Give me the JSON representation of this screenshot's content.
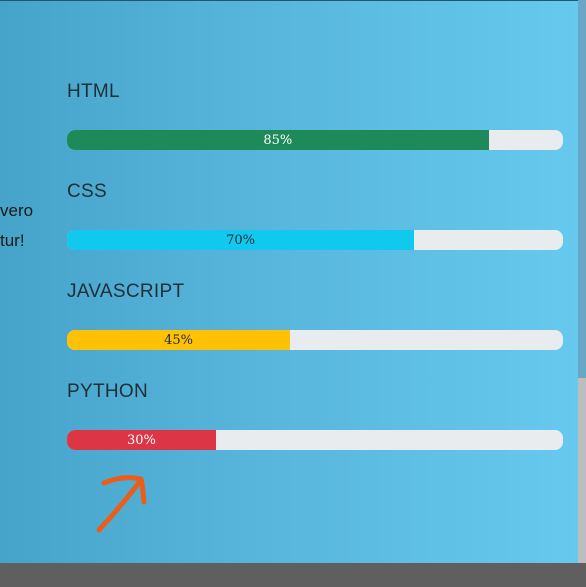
{
  "fragments": {
    "line1": "vero",
    "line2": "tur!"
  },
  "skills": [
    {
      "name": "HTML",
      "percent_label": "85%",
      "value": 0.85,
      "color": "#1e8a5a",
      "text_color": "light"
    },
    {
      "name": "CSS",
      "percent_label": "70%",
      "value": 0.7,
      "color": "#11c8ef",
      "text_color": "dark"
    },
    {
      "name": "JAVASCRIPT",
      "percent_label": "45%",
      "value": 0.45,
      "color": "#ffc105",
      "text_color": "dark"
    },
    {
      "name": "PYTHON",
      "percent_label": "30%",
      "value": 0.3,
      "color": "#dc3546",
      "text_color": "light"
    }
  ],
  "annotation": {
    "icon": "hand-drawn-arrow-icon",
    "color": "#ea5e1a"
  },
  "colors": {
    "track": "#e9ecef"
  }
}
